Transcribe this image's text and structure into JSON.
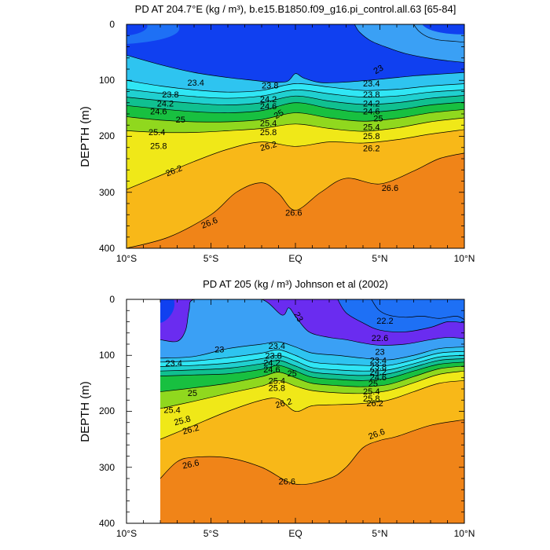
{
  "chart_data": [
    {
      "type": "contour",
      "title": "PD AT 204.7°E (kg / m³), b.e15.B1850.f09_g16.pi_control.all.63 [65-84]",
      "xlabel": "",
      "ylabel": "DEPTH (m)",
      "xlim": [
        -10,
        10
      ],
      "ylim": [
        400,
        0
      ],
      "x_ticks": [
        -10,
        -5,
        0,
        5,
        10
      ],
      "x_tick_labels": [
        "10°S",
        "5°S",
        "EQ",
        "5°N",
        "10°N"
      ],
      "y_ticks": [
        0,
        100,
        200,
        300,
        400
      ],
      "y_tick_labels": [
        "0",
        "100",
        "200",
        "300",
        "400"
      ],
      "data_xlim": [
        -10,
        10
      ],
      "contour_levels": [
        22.2,
        22.6,
        23,
        23.4,
        23.8,
        24.2,
        24.6,
        25,
        25.4,
        25.8,
        26.2,
        26.6
      ],
      "lines": [
        {
          "level": 22.6,
          "x": [
            7,
            7.3,
            7.8,
            8.5,
            9.3,
            10
          ],
          "depth": [
            0,
            12,
            22,
            28,
            30,
            32
          ]
        },
        {
          "level": 23,
          "x": [
            3.5,
            3.8,
            4.5,
            5.5,
            6.5,
            7.8,
            9,
            10
          ],
          "depth": [
            0,
            14,
            30,
            42,
            52,
            60,
            65,
            68
          ]
        },
        {
          "level": 23.4,
          "x": [
            -10,
            -8,
            -6,
            -4,
            -2.5,
            -1.5,
            -0.5,
            0,
            0.5,
            1.5,
            3,
            5,
            7,
            9,
            10
          ],
          "depth": [
            55,
            72,
            86,
            95,
            100,
            103,
            102,
            88,
            96,
            104,
            103,
            98,
            92,
            88,
            86
          ]
        },
        {
          "level": 23.8,
          "x": [
            -10,
            -8,
            -6,
            -4,
            -2,
            0,
            2,
            4,
            6,
            8,
            10
          ],
          "depth": [
            100,
            110,
            117,
            121,
            118,
            106,
            112,
            118,
            116,
            110,
            106
          ]
        },
        {
          "level": 24.2,
          "x": [
            -10,
            -8,
            -6,
            -4,
            -2,
            0,
            2,
            4,
            6,
            8,
            10
          ],
          "depth": [
            116,
            123,
            129,
            132,
            128,
            117,
            124,
            130,
            128,
            121,
            117
          ]
        },
        {
          "level": 24.6,
          "x": [
            -10,
            -8,
            -6,
            -4,
            -2,
            0,
            2,
            4,
            6,
            8,
            10
          ],
          "depth": [
            130,
            136,
            141,
            144,
            140,
            128,
            137,
            143,
            140,
            132,
            127
          ]
        },
        {
          "level": 25,
          "x": [
            -10,
            -8,
            -6,
            -4,
            -2,
            0,
            2,
            4,
            6,
            8,
            10
          ],
          "depth": [
            145,
            151,
            156,
            158,
            154,
            140,
            150,
            157,
            153,
            144,
            139
          ]
        },
        {
          "level": 25.4,
          "x": [
            -10,
            -8,
            -6,
            -4,
            -2,
            0,
            2,
            4,
            6,
            8,
            10
          ],
          "depth": [
            165,
            171,
            174,
            174,
            170,
            158,
            167,
            173,
            168,
            158,
            152
          ]
        },
        {
          "level": 25.8,
          "x": [
            -10,
            -8,
            -6,
            -4,
            -2,
            0,
            2,
            4,
            6,
            8,
            10
          ],
          "depth": [
            190,
            193,
            193,
            190,
            186,
            178,
            186,
            191,
            185,
            174,
            167
          ]
        },
        {
          "level": 26.2,
          "x": [
            -10,
            -8,
            -6,
            -4,
            -2,
            0,
            2,
            4,
            6,
            8,
            10
          ],
          "depth": [
            295,
            270,
            245,
            223,
            210,
            218,
            210,
            212,
            206,
            196,
            188
          ]
        },
        {
          "level": 26.6,
          "x": [
            -10,
            -7.5,
            -5,
            -3.5,
            -2,
            -1,
            0,
            1.5,
            3,
            5,
            7,
            8.5,
            10
          ],
          "depth": [
            400,
            380,
            340,
            300,
            283,
            302,
            332,
            300,
            275,
            285,
            262,
            240,
            230
          ]
        }
      ],
      "contour_labels": [
        {
          "text": "23.4",
          "x": -5.9,
          "depth": 104,
          "angle": 0
        },
        {
          "text": "23.8",
          "x": -7.4,
          "depth": 125,
          "angle": 0
        },
        {
          "text": "24.2",
          "x": -7.7,
          "depth": 141,
          "angle": 0
        },
        {
          "text": "24.6",
          "x": -8.1,
          "depth": 155,
          "angle": 0
        },
        {
          "text": "25",
          "x": -6.8,
          "depth": 170,
          "angle": 0
        },
        {
          "text": "25.4",
          "x": -8.2,
          "depth": 192,
          "angle": 0
        },
        {
          "text": "25.8",
          "x": -8.1,
          "depth": 217,
          "angle": 0
        },
        {
          "text": "26.2",
          "x": -7.2,
          "depth": 261,
          "angle": -22
        },
        {
          "text": "26.6",
          "x": -5.1,
          "depth": 354,
          "angle": -22
        },
        {
          "text": "23.8",
          "x": -1.5,
          "depth": 109,
          "angle": 0
        },
        {
          "text": "24.2",
          "x": -1.6,
          "depth": 133,
          "angle": 0
        },
        {
          "text": "24.6",
          "x": -1.6,
          "depth": 146,
          "angle": 0
        },
        {
          "text": "25",
          "x": -1.0,
          "depth": 160,
          "angle": -30
        },
        {
          "text": "25.4",
          "x": -1.6,
          "depth": 176,
          "angle": 0
        },
        {
          "text": "25.8",
          "x": -1.6,
          "depth": 192,
          "angle": 0
        },
        {
          "text": "26.2",
          "x": -1.6,
          "depth": 217,
          "angle": -15
        },
        {
          "text": "26.6",
          "x": -0.1,
          "depth": 336,
          "angle": 0
        },
        {
          "text": "23",
          "x": 4.9,
          "depth": 80,
          "angle": -30
        },
        {
          "text": "23.4",
          "x": 4.5,
          "depth": 105,
          "angle": 0
        },
        {
          "text": "23.8",
          "x": 4.5,
          "depth": 125,
          "angle": 0
        },
        {
          "text": "24.2",
          "x": 4.5,
          "depth": 141,
          "angle": 0
        },
        {
          "text": "24.6",
          "x": 4.5,
          "depth": 155,
          "angle": 0
        },
        {
          "text": "25",
          "x": 4.9,
          "depth": 168,
          "angle": 0
        },
        {
          "text": "25.4",
          "x": 4.5,
          "depth": 183,
          "angle": 0
        },
        {
          "text": "25.8",
          "x": 4.5,
          "depth": 199,
          "angle": 0
        },
        {
          "text": "26.2",
          "x": 4.5,
          "depth": 221,
          "angle": 0
        },
        {
          "text": "26.6",
          "x": 5.6,
          "depth": 292,
          "angle": 0
        }
      ]
    },
    {
      "type": "contour",
      "title": "PD AT 205 (kg / m³) Johnson et al (2002)",
      "xlabel": "",
      "ylabel": "DEPTH (m)",
      "xlim": [
        -10,
        10
      ],
      "ylim": [
        400,
        0
      ],
      "x_ticks": [
        -10,
        -5,
        0,
        5,
        10
      ],
      "x_tick_labels": [
        "10°S",
        "5°S",
        "EQ",
        "5°N",
        "10°N"
      ],
      "y_ticks": [
        0,
        100,
        200,
        300,
        400
      ],
      "y_tick_labels": [
        "0",
        "100",
        "200",
        "300",
        "400"
      ],
      "data_xlim": [
        -8,
        10
      ],
      "contour_levels": [
        22.2,
        22.6,
        23,
        23.4,
        23.8,
        24.2,
        24.6,
        25,
        25.4,
        25.8,
        26.2,
        26.6
      ],
      "lines": [
        {
          "level": 22.2,
          "x": [
            4.5,
            4.9,
            5.5,
            6.5,
            7.5,
            8.5,
            9.5,
            10
          ],
          "depth": [
            0,
            18,
            28,
            32,
            30,
            34,
            30,
            36
          ]
        },
        {
          "level": 22.6,
          "x": [
            2.5,
            3,
            4,
            5,
            6.5,
            8,
            9,
            10
          ],
          "depth": [
            0,
            24,
            42,
            55,
            58,
            50,
            40,
            42
          ]
        },
        {
          "level": 23,
          "x": [
            -8,
            -7,
            -6.5,
            -6.3,
            -6,
            -4,
            -2,
            -0.8,
            -0.4,
            0,
            0.8,
            2,
            3,
            4,
            5,
            6.5,
            8,
            9,
            10
          ],
          "depth": [
            72,
            75,
            55,
            20,
            0,
            0,
            0,
            28,
            15,
            30,
            58,
            68,
            72,
            78,
            82,
            80,
            72,
            68,
            70
          ]
        },
        {
          "level": 23.4,
          "x": [
            -8,
            -6,
            -4,
            -2,
            -1,
            0,
            1,
            2.5,
            4,
            5.5,
            7,
            8.5,
            10
          ],
          "depth": [
            105,
            102,
            88,
            80,
            76,
            85,
            96,
            100,
            105,
            108,
            100,
            88,
            85
          ]
        },
        {
          "level": 23.8,
          "x": [
            -8,
            -6,
            -4,
            -2,
            -1,
            0,
            1,
            2.5,
            4,
            5.5,
            7,
            8.5,
            10
          ],
          "depth": [
            112,
            110,
            104,
            96,
            90,
            100,
            112,
            116,
            118,
            118,
            108,
            96,
            93
          ]
        },
        {
          "level": 24.2,
          "x": [
            -8,
            -6,
            -4,
            -2,
            -1,
            0,
            1,
            2.5,
            4,
            5.5,
            7,
            8.5,
            10
          ],
          "depth": [
            120,
            118,
            114,
            106,
            100,
            110,
            122,
            126,
            128,
            126,
            115,
            103,
            100
          ]
        },
        {
          "level": 24.6,
          "x": [
            -8,
            -6,
            -4,
            -2,
            -1,
            0,
            1,
            2.5,
            4,
            5.5,
            7,
            8.5,
            10
          ],
          "depth": [
            128,
            126,
            123,
            115,
            109,
            119,
            130,
            134,
            136,
            133,
            121,
            109,
            106
          ]
        },
        {
          "level": 25,
          "x": [
            -8,
            -6,
            -4,
            -2,
            -1,
            0,
            1,
            2.5,
            4,
            5.5,
            7,
            8.5,
            10
          ],
          "depth": [
            137,
            135,
            133,
            125,
            118,
            128,
            139,
            143,
            145,
            141,
            128,
            116,
            112
          ]
        },
        {
          "level": 25.4,
          "x": [
            -8,
            -6,
            -4,
            -2,
            -1,
            0,
            1,
            2.5,
            4,
            5.5,
            7,
            8.5,
            10
          ],
          "depth": [
            165,
            158,
            150,
            138,
            130,
            140,
            150,
            154,
            156,
            152,
            138,
            124,
            119
          ]
        },
        {
          "level": 25.8,
          "x": [
            -8,
            -6,
            -4,
            -2,
            -1,
            0,
            1,
            2.5,
            4,
            5.5,
            7,
            8.5,
            10
          ],
          "depth": [
            195,
            182,
            168,
            155,
            145,
            155,
            163,
            167,
            168,
            163,
            149,
            134,
            128
          ]
        },
        {
          "level": 26.2,
          "x": [
            -8,
            -6,
            -4,
            -2,
            -1,
            0,
            1,
            2.5,
            4,
            5.5,
            7,
            8.5,
            10
          ],
          "depth": [
            250,
            225,
            200,
            180,
            178,
            200,
            190,
            188,
            186,
            180,
            165,
            150,
            145
          ]
        },
        {
          "level": 26.6,
          "x": [
            -8,
            -7,
            -6,
            -4,
            -2,
            0,
            2,
            3,
            4,
            5,
            6,
            8,
            10
          ],
          "depth": [
            320,
            290,
            282,
            283,
            300,
            330,
            320,
            300,
            265,
            252,
            245,
            225,
            215
          ]
        }
      ],
      "contour_labels": [
        {
          "text": "22.2",
          "x": 5.3,
          "depth": 38,
          "angle": 0
        },
        {
          "text": "22.6",
          "x": 5.0,
          "depth": 69,
          "angle": 0
        },
        {
          "text": "23",
          "x": -4.5,
          "depth": 89,
          "angle": 0
        },
        {
          "text": "23",
          "x": 0.2,
          "depth": 31,
          "angle": 60
        },
        {
          "text": "23",
          "x": 5.0,
          "depth": 93,
          "angle": 0
        },
        {
          "text": "23.4",
          "x": -7.2,
          "depth": 114,
          "angle": 0
        },
        {
          "text": "23.4",
          "x": -1.1,
          "depth": 83,
          "angle": 0
        },
        {
          "text": "23.4",
          "x": 4.9,
          "depth": 109,
          "angle": 0
        },
        {
          "text": "23.8",
          "x": -1.3,
          "depth": 100,
          "angle": 0
        },
        {
          "text": "23.8",
          "x": 4.9,
          "depth": 120,
          "angle": 0
        },
        {
          "text": "24.2",
          "x": -1.4,
          "depth": 113,
          "angle": 0
        },
        {
          "text": "24.2",
          "x": 4.9,
          "depth": 129,
          "angle": 0
        },
        {
          "text": "24.6",
          "x": -1.4,
          "depth": 125,
          "angle": 0
        },
        {
          "text": "24.6",
          "x": 4.9,
          "depth": 139,
          "angle": 0
        },
        {
          "text": "25",
          "x": -6.1,
          "depth": 167,
          "angle": 0
        },
        {
          "text": "25",
          "x": -0.2,
          "depth": 132,
          "angle": 0
        },
        {
          "text": "25",
          "x": 4.6,
          "depth": 150,
          "angle": 0
        },
        {
          "text": "25.4",
          "x": -7.3,
          "depth": 197,
          "angle": 0
        },
        {
          "text": "25.4",
          "x": -1.1,
          "depth": 145,
          "angle": 0
        },
        {
          "text": "25.4",
          "x": 4.5,
          "depth": 164,
          "angle": 0
        },
        {
          "text": "25.8",
          "x": -6.7,
          "depth": 216,
          "angle": -15
        },
        {
          "text": "25.8",
          "x": -1.1,
          "depth": 158,
          "angle": 0
        },
        {
          "text": "25.8",
          "x": 4.5,
          "depth": 177,
          "angle": 0
        },
        {
          "text": "26.2",
          "x": -6.2,
          "depth": 232,
          "angle": -15
        },
        {
          "text": "26.2",
          "x": -0.7,
          "depth": 185,
          "angle": -15
        },
        {
          "text": "26.2",
          "x": 4.7,
          "depth": 185,
          "angle": 0
        },
        {
          "text": "26.6",
          "x": -6.2,
          "depth": 294,
          "angle": -12
        },
        {
          "text": "26.6",
          "x": -0.5,
          "depth": 325,
          "angle": 0
        },
        {
          "text": "26.6",
          "x": 4.8,
          "depth": 240,
          "angle": -20
        }
      ]
    }
  ],
  "colors": {
    "background": "#ffffff",
    "frame": "#000000",
    "line": "#000000",
    "missing": "#ffffff",
    "fills": [
      "#6a2cf0",
      "#1040f0",
      "#1e70f5",
      "#3aa0f5",
      "#2ec4f0",
      "#30e6f5",
      "#20d0d0",
      "#10c090",
      "#18c040",
      "#90d81e",
      "#f0e818",
      "#f8b818",
      "#f08418",
      "#e64618",
      "#d81a14",
      "#c01010"
    ]
  }
}
